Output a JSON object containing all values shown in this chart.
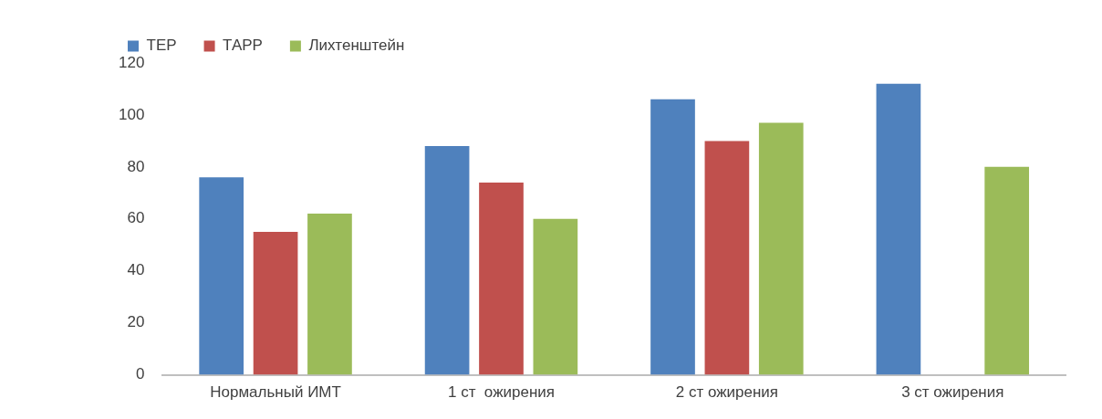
{
  "chart_data": {
    "type": "bar",
    "categories": [
      "Нормальный ИМТ",
      "1 ст  ожирения",
      "2 ст ожирения",
      "3 ст ожирения"
    ],
    "series": [
      {
        "name": "ТЕР",
        "color": "#4f81bd",
        "values": [
          76,
          88,
          106,
          112
        ]
      },
      {
        "name": "ТАРР",
        "color": "#c0504d",
        "values": [
          55,
          74,
          90,
          null
        ]
      },
      {
        "name": "Лихтенштейн",
        "color": "#9bbb59",
        "values": [
          62,
          60,
          97,
          80
        ]
      }
    ],
    "ylim": [
      0,
      120
    ],
    "yticks": [
      0,
      20,
      40,
      60,
      80,
      100,
      120
    ],
    "grid": false,
    "legend": "top left"
  }
}
